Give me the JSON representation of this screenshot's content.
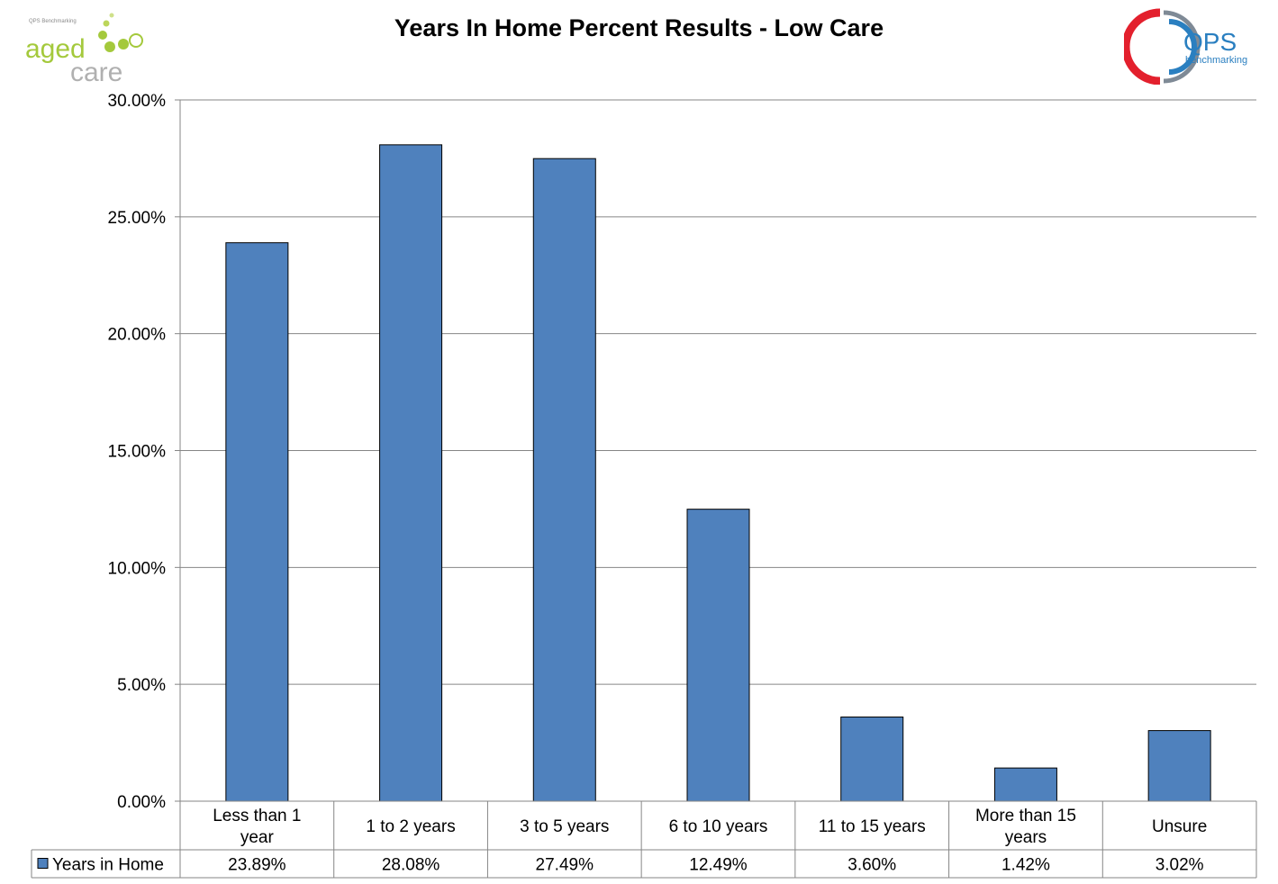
{
  "logos": {
    "left": {
      "small_text": "QPS Benchmarking",
      "word1": "aged",
      "word2": "care"
    },
    "right": {
      "main": "QPS",
      "sub": "benchmarking"
    }
  },
  "chart_data": {
    "type": "bar",
    "title": "Years In Home Percent Results - Low Care",
    "categories": [
      "Less than 1 year",
      "1 to 2 years",
      "3 to 5 years",
      "6 to 10 years",
      "11 to 15 years",
      "More than 15 years",
      "Unsure"
    ],
    "category_lines": [
      [
        "Less than 1",
        "year"
      ],
      [
        "1 to 2 years"
      ],
      [
        "3 to 5 years"
      ],
      [
        "6 to 10 years"
      ],
      [
        "11 to 15 years"
      ],
      [
        "More than 15",
        "years"
      ],
      [
        "Unsure"
      ]
    ],
    "series": [
      {
        "name": "Years in Home",
        "values": [
          23.89,
          28.08,
          27.49,
          12.49,
          3.6,
          1.42,
          3.02
        ],
        "labels": [
          "23.89%",
          "28.08%",
          "27.49%",
          "12.49%",
          "3.60%",
          "1.42%",
          "3.02%"
        ]
      }
    ],
    "ylim": [
      0,
      30
    ],
    "yticks": [
      0,
      5,
      10,
      15,
      20,
      25,
      30
    ],
    "ytick_labels": [
      "0.00%",
      "5.00%",
      "10.00%",
      "15.00%",
      "20.00%",
      "25.00%",
      "30.00%"
    ],
    "grid": true,
    "legend": "data-table",
    "colors": {
      "bar": "#4f81bd",
      "bar_border": "#000000",
      "grid": "#868686"
    }
  }
}
